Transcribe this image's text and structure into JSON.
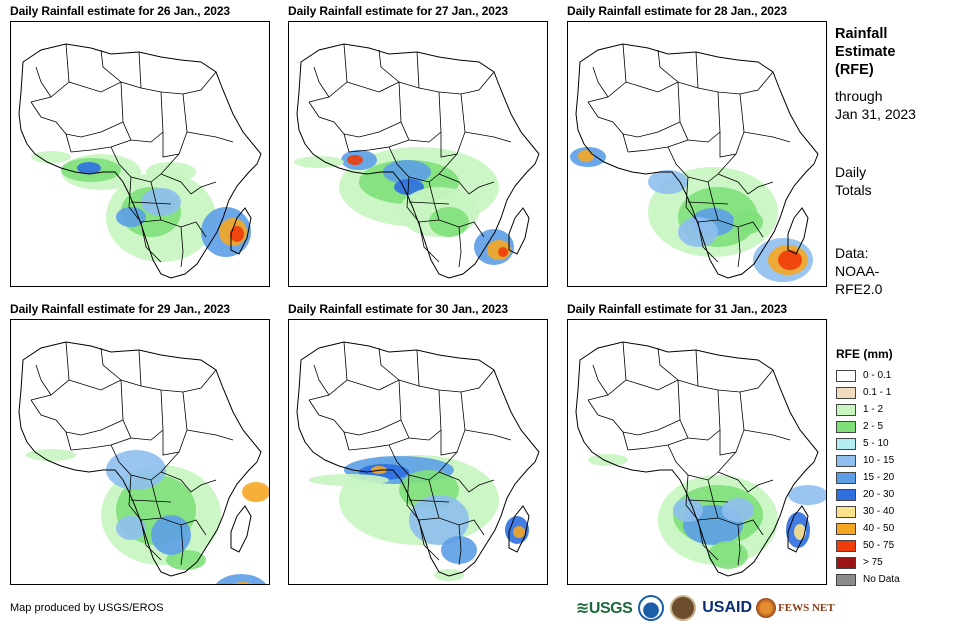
{
  "panels": [
    {
      "title": "Daily Rainfall estimate for 26 Jan., 2023"
    },
    {
      "title": "Daily Rainfall estimate for 27 Jan., 2023"
    },
    {
      "title": "Daily Rainfall estimate for 28 Jan., 2023"
    },
    {
      "title": "Daily Rainfall estimate for 29 Jan., 2023"
    },
    {
      "title": "Daily Rainfall estimate for 30 Jan., 2023"
    },
    {
      "title": "Daily Rainfall estimate for 31 Jan., 2023"
    }
  ],
  "side": {
    "title_line1": "Rainfall",
    "title_line2": "Estimate",
    "title_line3": "(RFE)",
    "through_line1": "through",
    "through_line2": "Jan 31, 2023",
    "daily_line1": "Daily",
    "daily_line2": "Totals",
    "data_line1": "Data:",
    "data_line2": "NOAA-",
    "data_line3": "RFE2.0"
  },
  "legend": {
    "title": "RFE (mm)",
    "items": [
      {
        "label": "0 - 0.1",
        "color": "#ffffff"
      },
      {
        "label": "0.1 - 1",
        "color": "#f2dcc0"
      },
      {
        "label": "1 - 2",
        "color": "#c8f5c0"
      },
      {
        "label": "2 - 5",
        "color": "#7fe07a"
      },
      {
        "label": "5 - 10",
        "color": "#b4ecf4"
      },
      {
        "label": "10 - 15",
        "color": "#8fbfee"
      },
      {
        "label": "15 - 20",
        "color": "#5c9ee6"
      },
      {
        "label": "20 - 30",
        "color": "#2f6fe0"
      },
      {
        "label": "30 - 40",
        "color": "#fbe38c"
      },
      {
        "label": "40 - 50",
        "color": "#f5a623"
      },
      {
        "label": "50 - 75",
        "color": "#f03c0a"
      },
      {
        "label": "> 75",
        "color": "#9e1414"
      },
      {
        "label": "No Data",
        "color": "#8c8c8c"
      }
    ]
  },
  "credit": "Map produced by USGS/EROS",
  "logos": {
    "usgs": "≋USGS",
    "usaid": "USAID",
    "fews": "FEWS NET"
  }
}
